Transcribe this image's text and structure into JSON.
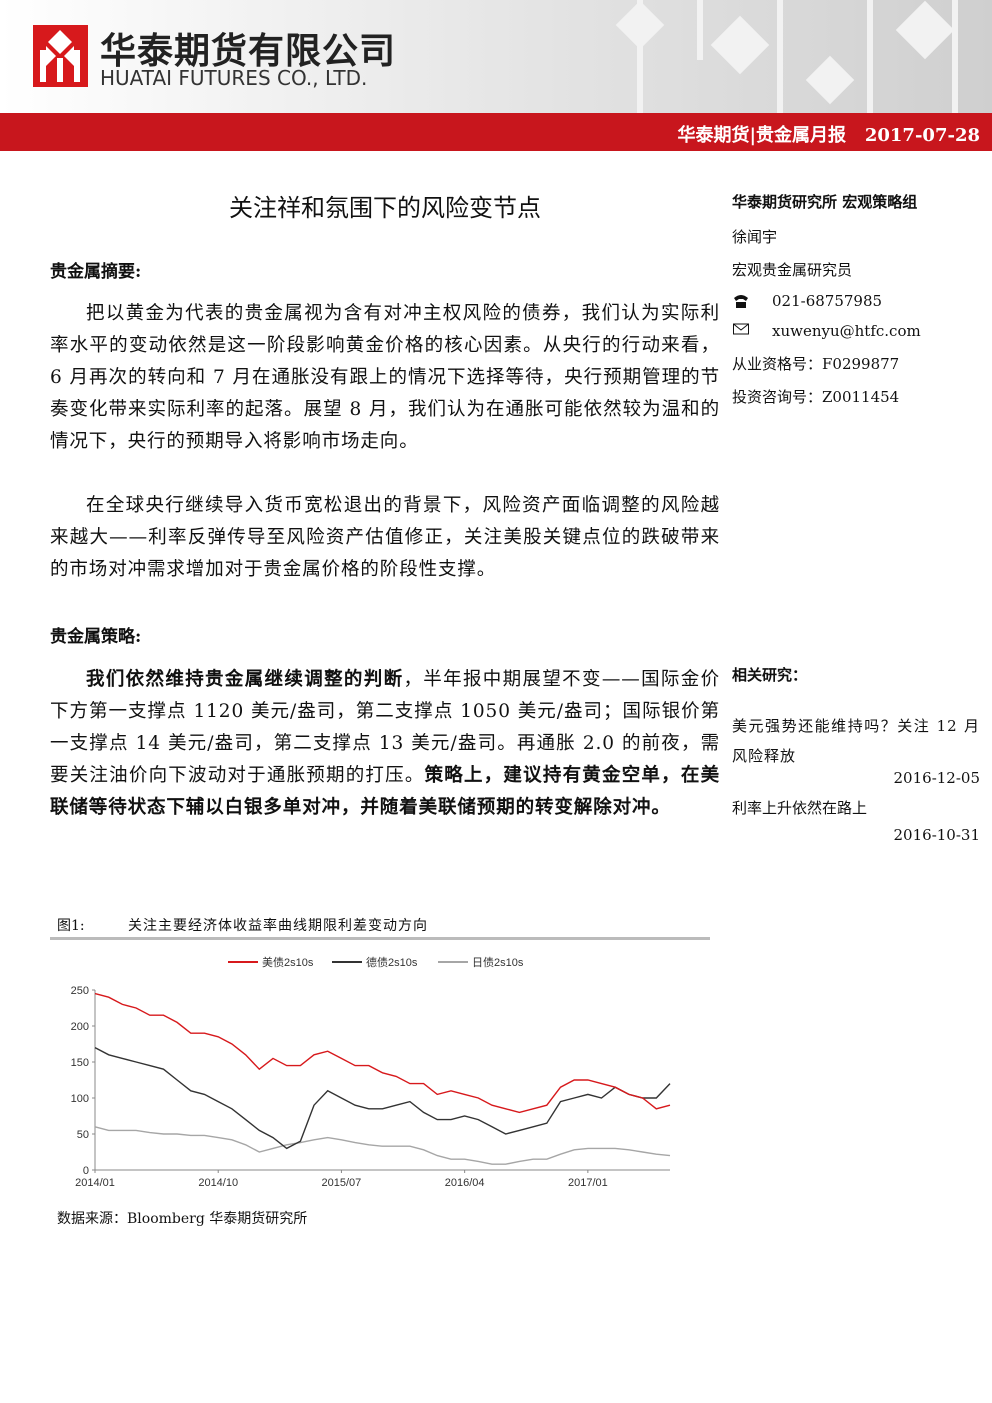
{
  "header": {
    "company_cn": "华泰期货有限公司",
    "company_en": "HUATAI FUTURES CO., LTD.",
    "report": "华泰期货|贵金属月报",
    "date": "2017-07-28"
  },
  "title": "关注祥和氛围下的风险变节点",
  "sections": [
    {
      "heading": "贵金属摘要:",
      "paragraphs": [
        [
          {
            "text": "把以黄金为代表的贵金属视为含有对冲主权风险的债券，我们认为实际利率水平的变动依然是这一阶段影响黄金价格的核心因素。从央行的行动来看，6 月再次的转向和 7 月在通胀没有跟上的情况下选择等待，央行预期管理的节奏变化带来实际利率的起落。展望 8 月，我们认为在通胀可能依然较为温和的情况下，央行的预期导入将影响市场走向。"
          }
        ],
        [
          {
            "text": "在全球央行继续导入货币宽松退出的背景下，风险资产面临调整的风险越来越大——利率反弹传导至风险资产估值修正，关注美股关键点位的跌破带来的市场对冲需求增加对于贵金属价格的阶段性支撑。"
          }
        ]
      ]
    },
    {
      "heading": "贵金属策略:",
      "paragraphs": [
        [
          {
            "text": "我们依然维持贵金属继续调整的判断",
            "bold": true
          },
          {
            "text": "，半年报中期展望不变——国际金价下方第一支撑点 1120 美元/盎司，第二支撑点 1050 美元/盎司；国际银价第一支撑点 14 美元/盎司，第二支撑点 13 美元/盎司。再通胀 2.0 的前夜，需要关注油价向下波动对于通胀预期的打压。"
          },
          {
            "text": "策略上，建议持有黄金空单，在美联储等待状态下辅以白银多单对冲，并随着美联储预期的转变解除对冲。",
            "bold": true
          }
        ]
      ]
    }
  ],
  "sidebar": {
    "group": "华泰期货研究所 宏观策略组",
    "author": "徐闻宇",
    "position": "宏观贵金属研究员",
    "phone": "021-68757985",
    "email": "xuwenyu@htfc.com",
    "qualification": "从业资格号：F0299877",
    "consulting": "投资咨询号：Z0011454"
  },
  "related": {
    "heading": "相关研究：",
    "items": [
      {
        "title": "美元强势还能维持吗？关注 12 月风险释放",
        "date": "2016-12-05"
      },
      {
        "title": "利率上升依然在路上",
        "date": "2016-10-31"
      }
    ]
  },
  "figure": {
    "label": "图1:",
    "source": "数据来源：Bloomberg 华泰期货研究所"
  },
  "chart_data": {
    "type": "line",
    "title": "关注主要经济体收益率曲线期限利差变动方向",
    "categories": [
      "2014/01",
      null,
      null,
      null,
      null,
      null,
      null,
      null,
      null,
      "2014/10",
      null,
      null,
      null,
      null,
      null,
      null,
      null,
      null,
      "2015/07",
      null,
      null,
      null,
      null,
      null,
      null,
      null,
      null,
      "2016/04",
      null,
      null,
      null,
      null,
      null,
      null,
      null,
      null,
      "2017/01",
      null,
      null,
      null,
      null,
      null,
      null
    ],
    "series": [
      {
        "name": "美债2s10s",
        "color": "#d7191c",
        "values": [
          245,
          240,
          230,
          225,
          215,
          215,
          205,
          190,
          190,
          185,
          175,
          160,
          140,
          155,
          145,
          145,
          160,
          165,
          155,
          145,
          145,
          135,
          130,
          120,
          120,
          105,
          110,
          105,
          100,
          90,
          85,
          80,
          85,
          90,
          115,
          125,
          125,
          120,
          115,
          105,
          100,
          85,
          90
        ]
      },
      {
        "name": "德债2s10s",
        "color": "#333333",
        "values": [
          170,
          160,
          155,
          150,
          145,
          140,
          125,
          110,
          105,
          95,
          85,
          70,
          55,
          45,
          30,
          40,
          90,
          110,
          100,
          90,
          85,
          85,
          90,
          95,
          80,
          70,
          70,
          75,
          70,
          60,
          50,
          55,
          60,
          65,
          95,
          100,
          105,
          100,
          115,
          105,
          100,
          100,
          120
        ]
      },
      {
        "name": "日债2s10s",
        "color": "#a6a6a6",
        "values": [
          60,
          55,
          55,
          55,
          52,
          50,
          50,
          48,
          48,
          45,
          42,
          35,
          25,
          30,
          35,
          38,
          42,
          45,
          42,
          38,
          35,
          33,
          33,
          33,
          28,
          20,
          15,
          15,
          12,
          8,
          8,
          12,
          15,
          15,
          22,
          28,
          30,
          30,
          30,
          28,
          25,
          22,
          20
        ]
      }
    ],
    "ylim": [
      0,
      250
    ],
    "yticks": [
      0,
      50,
      100,
      150,
      200,
      250
    ],
    "grid": false,
    "legend": "top"
  }
}
